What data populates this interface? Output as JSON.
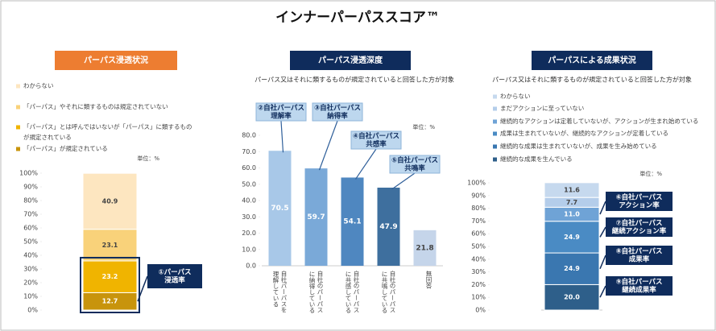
{
  "page_title": "インナーパーパススコア™",
  "chart_data": [
    {
      "type": "stacked_bar",
      "title": "パーパス浸透状況",
      "unit_label": "単位：%",
      "categories": [
        null
      ],
      "series": [
        {
          "name": "「パーパス」が規定されている",
          "color": "#c8940c",
          "values": [
            12.7
          ]
        },
        {
          "name": "「パーパス」とは呼んではいないが「パーパス」に類するものが規定されている",
          "color": "#f0b400",
          "values": [
            23.2
          ]
        },
        {
          "name": "「パーパス」やそれに類するものは規定されていない",
          "color": "#f9d27a",
          "values": [
            23.1
          ]
        },
        {
          "name": "わからない",
          "color": "#fde6c0",
          "values": [
            40.9
          ]
        }
      ],
      "ylim": [
        0,
        100
      ],
      "yticks": [
        {
          "value": 0,
          "label": "0%"
        },
        {
          "value": 10,
          "label": "10%"
        },
        {
          "value": 20,
          "label": "20%"
        },
        {
          "value": 30,
          "label": "30%"
        },
        {
          "value": 40,
          "label": "40%"
        },
        {
          "value": 50,
          "label": "50%"
        },
        {
          "value": 60,
          "label": "60%"
        },
        {
          "value": 70,
          "label": "70%"
        },
        {
          "value": 80,
          "label": "80%"
        },
        {
          "value": 90,
          "label": "90%"
        },
        {
          "value": 100,
          "label": "100%"
        }
      ],
      "callouts": [
        [
          "①パーパス",
          "浸透率"
        ]
      ]
    },
    {
      "type": "bar",
      "title": "パーパス浸透深度",
      "subtitle": "パーパス又はそれに類するものが規定されていると回答した方が対象",
      "unit_label": "単位：%",
      "categories": [
        "自社パーパスを理解している",
        "自社のパーパスに納得している",
        "自社のパーパスに共感している",
        "自社のパーパスに共鳴している",
        "無回答"
      ],
      "values": [
        70.5,
        59.7,
        54.1,
        47.9,
        21.8
      ],
      "colors": [
        "#a8c8e8",
        "#7aa9d8",
        "#4f87c0",
        "#3e6f9e",
        "#c5d5ea"
      ],
      "ylim": [
        0,
        80
      ],
      "yticks": [
        {
          "value": 0,
          "label": "0.0"
        },
        {
          "value": 10,
          "label": "10.0"
        },
        {
          "value": 20,
          "label": "20.0"
        },
        {
          "value": 30,
          "label": "30.0"
        },
        {
          "value": 40,
          "label": "40.0"
        },
        {
          "value": 50,
          "label": "50.0"
        },
        {
          "value": 60,
          "label": "60.0"
        },
        {
          "value": 70,
          "label": "70.0"
        },
        {
          "value": 80,
          "label": "80.0"
        }
      ],
      "callouts": [
        [
          "②自社パーパス",
          "理解率"
        ],
        [
          "③自社パーパス",
          "納得率"
        ],
        [
          "④自社パーパス",
          "共感率"
        ],
        [
          "⑤自社パーパス",
          "共鳴率"
        ]
      ]
    },
    {
      "type": "stacked_bar",
      "title": "パーパスによる成果状況",
      "subtitle": "パーパス又はそれに類するものが規定されていると回答した方が対象",
      "unit_label": "単位：%",
      "categories": [
        null
      ],
      "series": [
        {
          "name": "継続的な成果を生んでいる",
          "color": "#2e5f8a",
          "values": [
            20
          ],
          "value_labels": [
            "20.0"
          ]
        },
        {
          "name": "継続的な成果は生まれていないが、成果を生み始めている",
          "color": "#3a77b0",
          "values": [
            24.9
          ],
          "value_labels": [
            "24.9"
          ]
        },
        {
          "name": "成果は生まれていないが、継続的なアクションが定着している",
          "color": "#4a8bc4",
          "values": [
            24.9
          ],
          "value_labels": [
            "24.9"
          ]
        },
        {
          "name": "継続的なアクションは定着していないが、アクションが生まれ始めている",
          "color": "#6fa3d6",
          "values": [
            11
          ],
          "value_labels": [
            "11.0"
          ]
        },
        {
          "name": "まだアクションに至っていない",
          "color": "#b4cdea",
          "values": [
            7.7
          ],
          "value_labels": [
            "7.7"
          ]
        },
        {
          "name": "わからない",
          "color": "#c6d9ee",
          "values": [
            11.6
          ],
          "value_labels": [
            "11.6"
          ]
        }
      ],
      "ylim": [
        0,
        100
      ],
      "yticks": [
        {
          "value": 0,
          "label": "0%"
        },
        {
          "value": 10,
          "label": "10%"
        },
        {
          "value": 20,
          "label": "20%"
        },
        {
          "value": 30,
          "label": "30%"
        },
        {
          "value": 40,
          "label": "40%"
        },
        {
          "value": 50,
          "label": "50%"
        },
        {
          "value": 60,
          "label": "60%"
        },
        {
          "value": 70,
          "label": "70%"
        },
        {
          "value": 80,
          "label": "80%"
        },
        {
          "value": 90,
          "label": "90%"
        },
        {
          "value": 100,
          "label": "100%"
        }
      ],
      "callouts": [
        [
          "⑥自社パーパス",
          "アクション率"
        ],
        [
          "⑦自社パーパス",
          "継続アクション率"
        ],
        [
          "⑧自社パーパス",
          "成果率"
        ],
        [
          "⑨自社パーパス",
          "継続成果率"
        ]
      ]
    }
  ]
}
